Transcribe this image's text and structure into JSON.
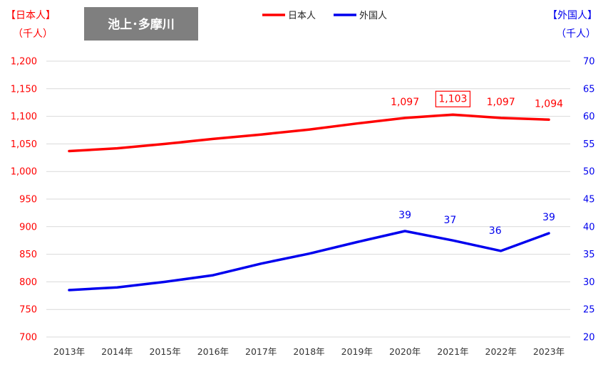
{
  "badge": {
    "label": "池上･多摩川"
  },
  "legend": [
    {
      "name": "日本人",
      "color": "#ff0000"
    },
    {
      "name": "外国人",
      "color": "#0000ee"
    }
  ],
  "axis_left": {
    "title_line1": "【日本人】",
    "title_line2": "（千人）",
    "color": "#ff0000"
  },
  "axis_right": {
    "title_line1": "【外国人】",
    "title_line2": "（千人）",
    "color": "#0000ee"
  },
  "chart_data": {
    "type": "line",
    "categories": [
      "2013年",
      "2014年",
      "2015年",
      "2016年",
      "2017年",
      "2018年",
      "2019年",
      "2020年",
      "2021年",
      "2022年",
      "2023年"
    ],
    "series": [
      {
        "name": "日本人",
        "axis": "left",
        "color": "#ff0000",
        "values": [
          1037,
          1042,
          1050,
          1059,
          1067,
          1076,
          1087,
          1097,
          1103,
          1097,
          1094
        ],
        "data_labels": {
          "7": "1,097",
          "8": "1,103",
          "9": "1,097",
          "10": "1,094"
        },
        "boxed_label_index": 8
      },
      {
        "name": "外国人",
        "axis": "right",
        "color": "#0000ee",
        "values": [
          28.5,
          29.0,
          30.0,
          31.2,
          33.3,
          35.1,
          37.2,
          39.2,
          37.5,
          35.6,
          38.8
        ],
        "data_labels": {
          "7": "39",
          "8": "37",
          "9": "36",
          "10": "39"
        }
      }
    ],
    "y_left": {
      "ylim": [
        700,
        1200
      ],
      "ticks": [
        "700",
        "750",
        "800",
        "850",
        "900",
        "950",
        "1,000",
        "1,050",
        "1,100",
        "1,150",
        "1,200"
      ]
    },
    "y_right": {
      "ylim": [
        20,
        70
      ],
      "ticks": [
        "20",
        "25",
        "30",
        "35",
        "40",
        "45",
        "50",
        "55",
        "60",
        "65",
        "70"
      ]
    },
    "grid": true,
    "legend_position": "top-center"
  }
}
